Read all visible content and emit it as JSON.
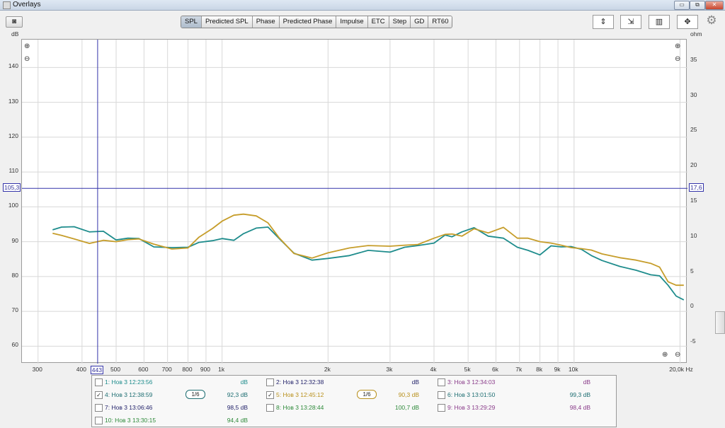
{
  "window": {
    "title": "Overlays",
    "min": "▭",
    "restore": "⧉",
    "close": "✕"
  },
  "toolbar": {
    "camera_icon": "camera-icon",
    "tabs": [
      "SPL",
      "Predicted SPL",
      "Phase",
      "Predicted Phase",
      "Impulse",
      "ETC",
      "Step",
      "GD",
      "RT60"
    ],
    "active_tab": "SPL"
  },
  "axes": {
    "left_unit": "dB",
    "right_unit": "ohm"
  },
  "chart_data": {
    "type": "line",
    "xscale": "log",
    "xlim": [
      270,
      21000
    ],
    "ylim": [
      55,
      148
    ],
    "y2lim": [
      -8,
      38
    ],
    "yticks": [
      60,
      70,
      80,
      90,
      100,
      110,
      120,
      130,
      140
    ],
    "yticks_right": [
      -5,
      0,
      5,
      10,
      15,
      20,
      25,
      30,
      35
    ],
    "xtick_labels": [
      "300",
      "400",
      "443",
      "500",
      "600",
      "700",
      "800",
      "900",
      "1k",
      "2k",
      "3k",
      "4k",
      "5k",
      "6k",
      "7k",
      "8k",
      "9k",
      "10k",
      "20,0k Hz"
    ],
    "xtick_values": [
      300,
      400,
      443,
      500,
      600,
      700,
      800,
      900,
      1000,
      2000,
      3000,
      4000,
      5000,
      6000,
      7000,
      8000,
      9000,
      10000,
      20000
    ],
    "cursor": {
      "x": 443,
      "y": 105.3,
      "x_label": "443",
      "y_label": "105,3",
      "y2_label": "17,6"
    },
    "grid": true,
    "series": [
      {
        "color": "#1e8c8c",
        "x": [
          330,
          350,
          380,
          420,
          460,
          500,
          540,
          580,
          640,
          720,
          800,
          860,
          940,
          1000,
          1080,
          1150,
          1250,
          1350,
          1450,
          1600,
          1800,
          2000,
          2300,
          2600,
          3000,
          3300,
          3600,
          4000,
          4300,
          4500,
          4800,
          5200,
          5700,
          6300,
          6900,
          7400,
          8000,
          8600,
          9200,
          9800,
          10500,
          11200,
          12000,
          13500,
          15000,
          16500,
          17500,
          18500,
          19500,
          20500
        ],
        "y": [
          93.4,
          94.2,
          94.3,
          92.8,
          93,
          90.5,
          91,
          90.9,
          88.5,
          88.3,
          88.4,
          89.8,
          90.3,
          90.9,
          90.4,
          92.3,
          93.9,
          94.2,
          91,
          86.7,
          84.7,
          85.2,
          86,
          87.5,
          87,
          88.4,
          88.9,
          89.6,
          91.9,
          91.4,
          92.8,
          94,
          91.6,
          91,
          88.4,
          87.5,
          86.2,
          88.8,
          88.5,
          88.6,
          87.8,
          86,
          84.6,
          82.9,
          81.8,
          80.5,
          80.2,
          77.5,
          74.4,
          73.3
        ]
      },
      {
        "color": "#c69d2a",
        "x": [
          330,
          350,
          380,
          420,
          460,
          500,
          540,
          580,
          640,
          720,
          800,
          860,
          940,
          1000,
          1080,
          1150,
          1250,
          1350,
          1450,
          1600,
          1800,
          2000,
          2300,
          2600,
          3000,
          3300,
          3600,
          4000,
          4300,
          4500,
          4800,
          5200,
          5700,
          6300,
          6900,
          7400,
          8000,
          8600,
          9200,
          9800,
          10500,
          11200,
          12000,
          13500,
          15000,
          16500,
          17500,
          18500,
          19500,
          20500
        ],
        "y": [
          92.4,
          91.8,
          90.8,
          89.5,
          90.4,
          90,
          90.6,
          90.8,
          89.3,
          87.9,
          88.2,
          91.3,
          93.8,
          95.9,
          97.6,
          97.9,
          97.4,
          95.4,
          91.2,
          86.6,
          85.3,
          86.8,
          88.2,
          88.9,
          88.7,
          89,
          89.2,
          91,
          92.1,
          92.2,
          91.6,
          93.7,
          92.5,
          94.1,
          91,
          91,
          90,
          89.6,
          89,
          88.3,
          88,
          87.6,
          86.5,
          85.4,
          84.7,
          83.8,
          82.7,
          78.5,
          77.5,
          77.5
        ]
      }
    ]
  },
  "legend": {
    "rows": [
      [
        {
          "checked": false,
          "name": "1: Нов 3 12:23:56",
          "value": "dB",
          "color": "#1e8c8c",
          "smooth": ""
        },
        {
          "checked": false,
          "name": "2: Нов 3 12:32:38",
          "value": "dB",
          "color": "#24246b",
          "smooth": ""
        },
        {
          "checked": false,
          "name": "3: Нов 3 12:34:03",
          "value": "dB",
          "color": "#8a3c8a",
          "smooth": ""
        }
      ],
      [
        {
          "checked": true,
          "name": "4: Нов 3 12:38:59",
          "value": "92,3 dB",
          "color": "#1e6e72",
          "smooth": "1/6"
        },
        {
          "checked": true,
          "name": "5: Нов 3 12:45:12",
          "value": "90,3 dB",
          "color": "#b8901c",
          "smooth": "1/6"
        },
        {
          "checked": false,
          "name": "6: Нов 3 13:01:50",
          "value": "99,3 dB",
          "color": "#1e6e72",
          "smooth": ""
        }
      ],
      [
        {
          "checked": false,
          "name": "7: Нов 3 13:06:46",
          "value": "98,5 dB",
          "color": "#24246b",
          "smooth": ""
        },
        {
          "checked": false,
          "name": "8: Нов 3 13:28:44",
          "value": "100,7 dB",
          "color": "#2e8a3a",
          "smooth": ""
        },
        {
          "checked": false,
          "name": "9: Нов 3 13:29:29",
          "value": "98,4 dB",
          "color": "#8a3c8a",
          "smooth": ""
        }
      ],
      [
        {
          "checked": false,
          "name": "10: Нов 3 13:30:15",
          "value": "94,4 dB",
          "color": "#2e8a3a",
          "smooth": ""
        }
      ]
    ]
  }
}
